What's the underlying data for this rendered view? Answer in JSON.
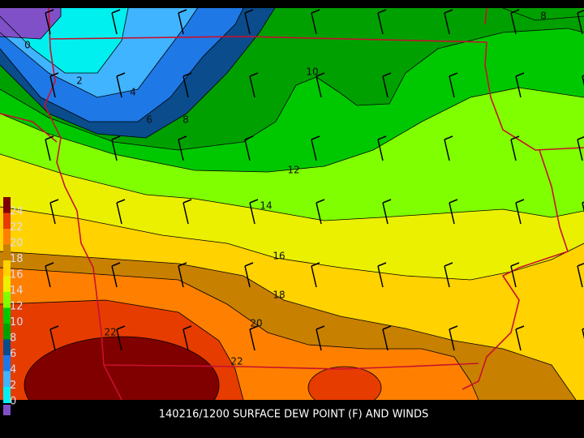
{
  "caption": "140216/1200 SURFACE DEW POINT (F) AND WINDS",
  "colorbar": {
    "items": [
      {
        "label": 24,
        "color": "#800000"
      },
      {
        "label": 22,
        "color": "#e63c00"
      },
      {
        "label": 20,
        "color": "#ff8000"
      },
      {
        "label": 18,
        "color": "#c88000"
      },
      {
        "label": 16,
        "color": "#ffd200"
      },
      {
        "label": 14,
        "color": "#ebf000"
      },
      {
        "label": 12,
        "color": "#80ff00"
      },
      {
        "label": 10,
        "color": "#00c800"
      },
      {
        "label": 8,
        "color": "#00a000"
      },
      {
        "label": 6,
        "color": "#0a4c8c"
      },
      {
        "label": 4,
        "color": "#1e78e6"
      },
      {
        "label": 2,
        "color": "#40b4ff"
      },
      {
        "label": 0,
        "color": "#00f0f0"
      }
    ]
  },
  "contour_labels": [
    0,
    2,
    4,
    6,
    8,
    10,
    12,
    14,
    16,
    18,
    20,
    22,
    22,
    8
  ]
}
